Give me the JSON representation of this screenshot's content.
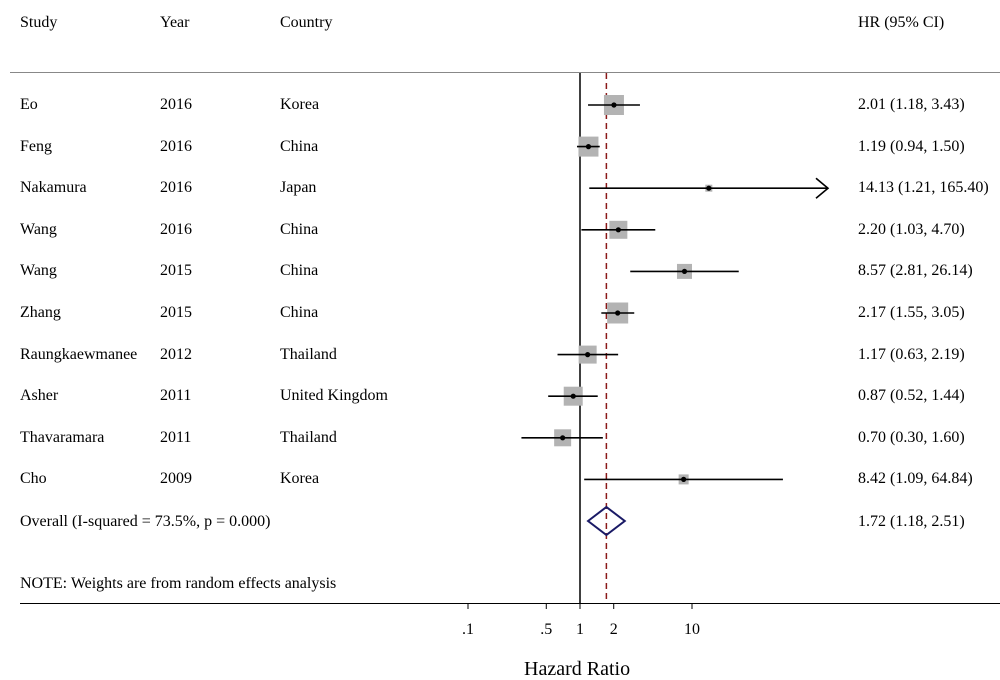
{
  "header": {
    "study": "Study",
    "year": "Year",
    "country": "Country",
    "hr": "HR (95% CI)"
  },
  "overall_label": "Overall  (I-squared = 73.5%, p = 0.000)",
  "note": "NOTE: Weights are from random effects analysis",
  "colors": {
    "box": "#b3b3b3",
    "diamond": "#1a1a66",
    "null_line": "#000000",
    "overall_line": "#8b1a1a"
  },
  "chart_data": {
    "type": "forest",
    "xscale": "log",
    "xlabel": "Hazard Ratio",
    "xticks": [
      0.1,
      0.5,
      1,
      2,
      10
    ],
    "xtick_labels": [
      ".1",
      ".5",
      "1",
      "2",
      "10"
    ],
    "null_value": 1,
    "studies": [
      {
        "study": "Eo",
        "year": "2016",
        "country": "Korea",
        "hr": 2.01,
        "lo": 1.18,
        "hi": 3.43,
        "label": "2.01 (1.18, 3.43)",
        "weight": 1.0
      },
      {
        "study": "Feng",
        "year": "2016",
        "country": "China",
        "hr": 1.19,
        "lo": 0.94,
        "hi": 1.5,
        "label": "1.19 (0.94, 1.50)",
        "weight": 1.0
      },
      {
        "study": "Nakamura",
        "year": "2016",
        "country": "Japan",
        "hr": 14.13,
        "lo": 1.21,
        "hi": 165.4,
        "label": "14.13 (1.21, 165.40)",
        "weight": 0.35,
        "arrow_right": true
      },
      {
        "study": "Wang",
        "year": "2016",
        "country": "China",
        "hr": 2.2,
        "lo": 1.03,
        "hi": 4.7,
        "label": "2.20 (1.03, 4.70)",
        "weight": 0.9
      },
      {
        "study": "Wang",
        "year": "2015",
        "country": "China",
        "hr": 8.57,
        "lo": 2.81,
        "hi": 26.14,
        "label": "8.57 (2.81, 26.14)",
        "weight": 0.75
      },
      {
        "study": "Zhang",
        "year": "2015",
        "country": "China",
        "hr": 2.17,
        "lo": 1.55,
        "hi": 3.05,
        "label": "2.17 (1.55, 3.05)",
        "weight": 1.05
      },
      {
        "study": "Raungkaewmanee",
        "year": "2012",
        "country": "Thailand",
        "hr": 1.17,
        "lo": 0.63,
        "hi": 2.19,
        "label": "1.17 (0.63, 2.19)",
        "weight": 0.9
      },
      {
        "study": "Asher",
        "year": "2011",
        "country": "United Kingdom",
        "hr": 0.87,
        "lo": 0.52,
        "hi": 1.44,
        "label": "0.87 (0.52, 1.44)",
        "weight": 0.95
      },
      {
        "study": "Thavaramara",
        "year": "2011",
        "country": "Thailand",
        "hr": 0.7,
        "lo": 0.3,
        "hi": 1.6,
        "label": "0.70 (0.30, 1.60)",
        "weight": 0.85
      },
      {
        "study": "Cho",
        "year": "2009",
        "country": "Korea",
        "hr": 8.42,
        "lo": 1.09,
        "hi": 64.84,
        "label": "8.42 (1.09, 64.84)",
        "weight": 0.5
      }
    ],
    "overall": {
      "hr": 1.72,
      "lo": 1.18,
      "hi": 2.51,
      "label": "1.72 (1.18, 2.51)"
    }
  }
}
